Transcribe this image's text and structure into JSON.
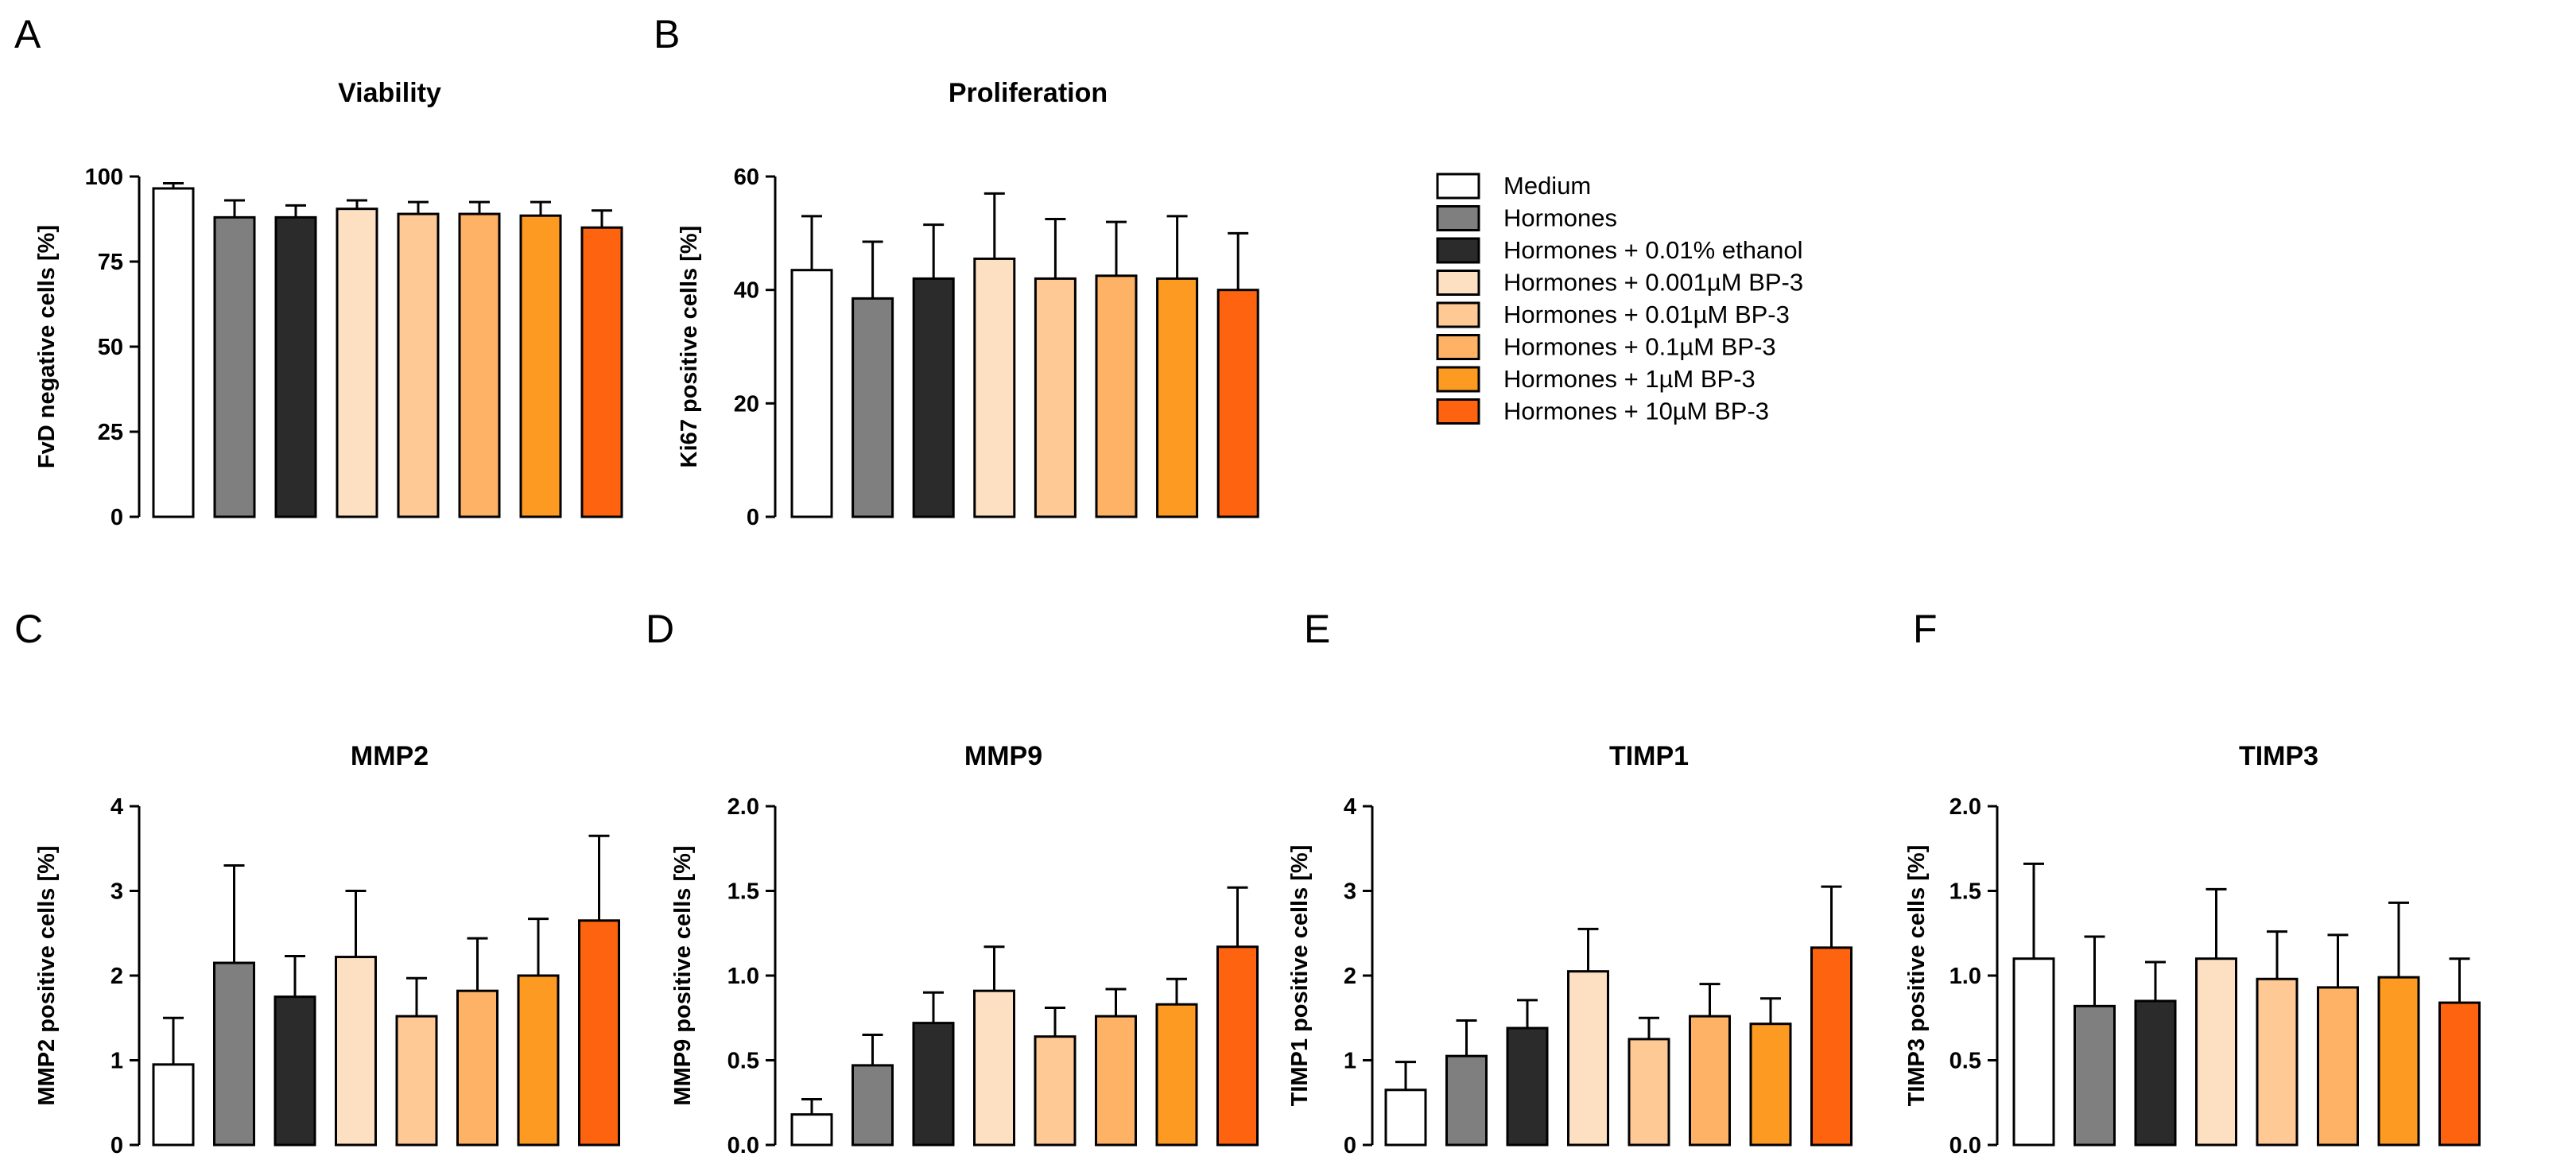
{
  "chart_data": [
    {
      "panel": "A",
      "type": "bar",
      "title": "Viability",
      "ylabel": "FvD negative cells [%]",
      "xlabel": "",
      "ylim": [
        0,
        100
      ],
      "ytick_labels": [
        "0",
        "25",
        "50",
        "75",
        "100"
      ],
      "categories": [
        "Medium",
        "Hormones",
        "Hormones + 0.01% ethanol",
        "Hormones + 0.001µM BP-3",
        "Hormones + 0.01µM BP-3",
        "Hormones + 0.1µM BP-3",
        "Hormones + 1µM BP-3",
        "Hormones + 10µM BP-3"
      ],
      "values": [
        96.5,
        88,
        88,
        90.5,
        89,
        89,
        88.5,
        85
      ],
      "errors": [
        1.5,
        5,
        3.5,
        2.5,
        3.5,
        3.5,
        4,
        5
      ]
    },
    {
      "panel": "B",
      "type": "bar",
      "title": "Proliferation",
      "ylabel": "Ki67 positive cells [%]",
      "xlabel": "",
      "ylim": [
        0,
        60
      ],
      "ytick_labels": [
        "0",
        "20",
        "40",
        "60"
      ],
      "categories": [
        "Medium",
        "Hormones",
        "Hormones + 0.01% ethanol",
        "Hormones + 0.001µM BP-3",
        "Hormones + 0.01µM BP-3",
        "Hormones + 0.1µM BP-3",
        "Hormones + 1µM BP-3",
        "Hormones + 10µM BP-3"
      ],
      "values": [
        43.5,
        38.5,
        42,
        45.5,
        42,
        42.5,
        42,
        40
      ],
      "errors": [
        9.5,
        10,
        9.5,
        11.5,
        10.5,
        9.5,
        11,
        10
      ]
    },
    {
      "panel": "C",
      "type": "bar",
      "title": "MMP2",
      "ylabel": "MMP2 positive cells [%]",
      "xlabel": "",
      "ylim": [
        0,
        4
      ],
      "ytick_labels": [
        "0",
        "1",
        "2",
        "3",
        "4"
      ],
      "categories": [
        "Medium",
        "Hormones",
        "Hormones + 0.01% ethanol",
        "Hormones + 0.001µM BP-3",
        "Hormones + 0.01µM BP-3",
        "Hormones + 0.1µM BP-3",
        "Hormones + 1µM BP-3",
        "Hormones + 10µM BP-3"
      ],
      "values": [
        0.95,
        2.15,
        1.75,
        2.22,
        1.52,
        1.82,
        2.0,
        2.65
      ],
      "errors": [
        0.55,
        1.15,
        0.48,
        0.78,
        0.45,
        0.62,
        0.67,
        1.0
      ]
    },
    {
      "panel": "D",
      "type": "bar",
      "title": "MMP9",
      "ylabel": "MMP9 positive cells [%]",
      "xlabel": "",
      "ylim": [
        0,
        2
      ],
      "ytick_labels": [
        "0.0",
        "0.5",
        "1.0",
        "1.5",
        "2.0"
      ],
      "categories": [
        "Medium",
        "Hormones",
        "Hormones + 0.01% ethanol",
        "Hormones + 0.001µM BP-3",
        "Hormones + 0.01µM BP-3",
        "Hormones + 0.1µM BP-3",
        "Hormones + 1µM BP-3",
        "Hormones + 10µM BP-3"
      ],
      "values": [
        0.18,
        0.47,
        0.72,
        0.91,
        0.64,
        0.76,
        0.83,
        1.17
      ],
      "errors": [
        0.09,
        0.18,
        0.18,
        0.26,
        0.17,
        0.16,
        0.15,
        0.35
      ]
    },
    {
      "panel": "E",
      "type": "bar",
      "title": "TIMP1",
      "ylabel": "TIMP1 positive cells [%]",
      "xlabel": "",
      "ylim": [
        0,
        4
      ],
      "ytick_labels": [
        "0",
        "1",
        "2",
        "3",
        "4"
      ],
      "categories": [
        "Medium",
        "Hormones",
        "Hormones + 0.01% ethanol",
        "Hormones + 0.001µM BP-3",
        "Hormones + 0.01µM BP-3",
        "Hormones + 0.1µM BP-3",
        "Hormones + 1µM BP-3",
        "Hormones + 10µM BP-3"
      ],
      "values": [
        0.65,
        1.05,
        1.38,
        2.05,
        1.25,
        1.52,
        1.43,
        2.33
      ],
      "errors": [
        0.33,
        0.42,
        0.33,
        0.5,
        0.25,
        0.38,
        0.3,
        0.72
      ]
    },
    {
      "panel": "F",
      "type": "bar",
      "title": "TIMP3",
      "ylabel": "TIMP3 positive cells [%]",
      "xlabel": "",
      "ylim": [
        0,
        2
      ],
      "ytick_labels": [
        "0.0",
        "0.5",
        "1.0",
        "1.5",
        "2.0"
      ],
      "categories": [
        "Medium",
        "Hormones",
        "Hormones + 0.01% ethanol",
        "Hormones + 0.001µM BP-3",
        "Hormones + 0.01µM BP-3",
        "Hormones + 0.1µM BP-3",
        "Hormones + 1µM BP-3",
        "Hormones + 10µM BP-3"
      ],
      "values": [
        1.1,
        0.82,
        0.85,
        1.1,
        0.98,
        0.93,
        0.99,
        0.84
      ],
      "errors": [
        0.56,
        0.41,
        0.23,
        0.41,
        0.28,
        0.31,
        0.44,
        0.26
      ]
    }
  ],
  "legend": {
    "items": [
      {
        "label": "Medium",
        "color": "#ffffff"
      },
      {
        "label": "Hormones",
        "color": "#7f7f7f"
      },
      {
        "label": "Hormones + 0.01% ethanol",
        "color": "#2b2b2b"
      },
      {
        "label": "Hormones + 0.001µM BP-3",
        "color": "#fde0c2"
      },
      {
        "label": "Hormones + 0.01µM BP-3",
        "color": "#fec995"
      },
      {
        "label": "Hormones + 0.1µM BP-3",
        "color": "#feb265"
      },
      {
        "label": "Hormones + 1µM BP-3",
        "color": "#fd9a22"
      },
      {
        "label": "Hormones + 10µM BP-3",
        "color": "#fe6410"
      }
    ]
  },
  "colors": [
    "#ffffff",
    "#7f7f7f",
    "#2b2b2b",
    "#fde0c2",
    "#fec995",
    "#feb265",
    "#fd9a22",
    "#fe6410"
  ]
}
